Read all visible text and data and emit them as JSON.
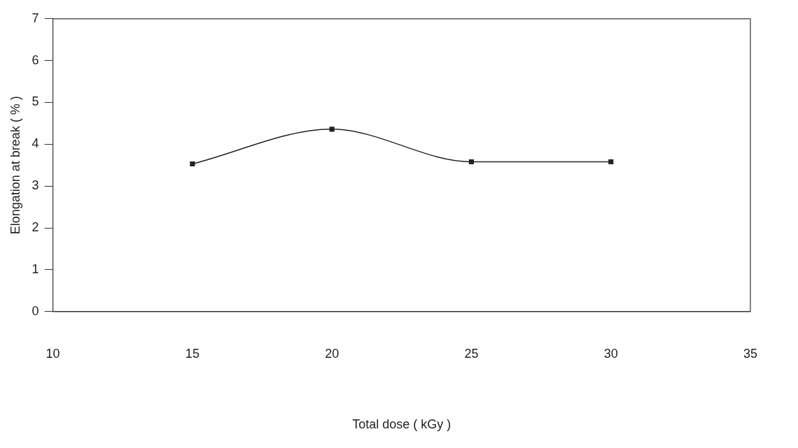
{
  "chart_data": {
    "type": "line",
    "xlabel": "Total dose ( kGy )",
    "ylabel": "Elongation at break ( % )",
    "x": [
      15,
      20,
      25,
      30
    ],
    "series": [
      {
        "color": "#222222",
        "values": [
          3.53,
          4.36,
          3.58,
          3.58
        ]
      }
    ],
    "xlim": [
      10,
      35
    ],
    "xticks": [
      10,
      15,
      20,
      25,
      30,
      35
    ],
    "ylim": [
      0,
      7
    ],
    "yticks": [
      0,
      1,
      2,
      3,
      4,
      5,
      6,
      7
    ],
    "grid": false,
    "legend": false,
    "marker": "square",
    "line_style": "solid"
  }
}
